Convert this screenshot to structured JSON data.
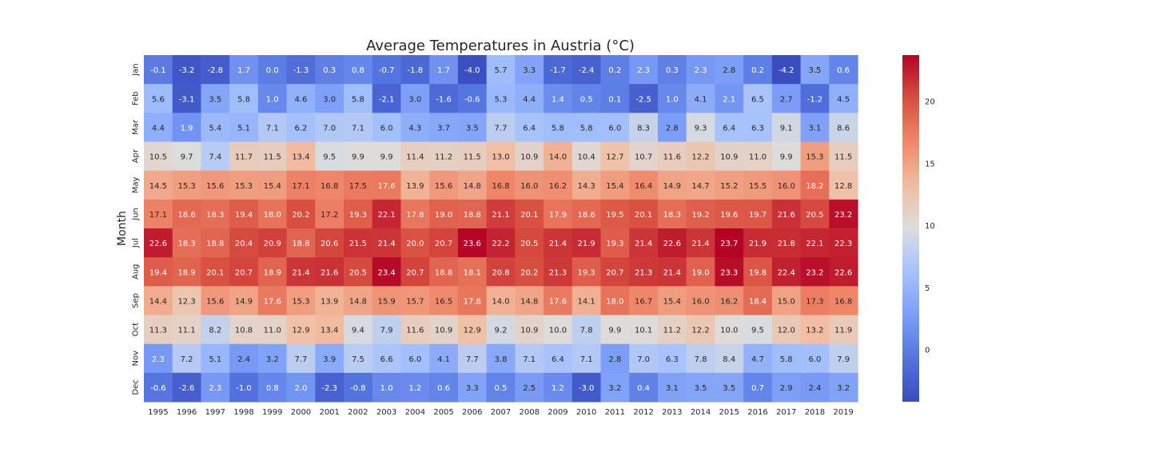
{
  "chart_data": {
    "type": "heatmap",
    "title": "Average Temperatures in Austria (°C)",
    "xlabel": "",
    "ylabel": "Month",
    "x": [
      "1995",
      "1996",
      "1997",
      "1998",
      "1999",
      "2000",
      "2001",
      "2002",
      "2003",
      "2004",
      "2005",
      "2006",
      "2007",
      "2008",
      "2009",
      "2010",
      "2011",
      "2012",
      "2013",
      "2014",
      "2015",
      "2016",
      "2017",
      "2018",
      "2019"
    ],
    "y": [
      "Jan",
      "Feb",
      "Mar",
      "Apr",
      "May",
      "Jun",
      "Jul",
      "Aug",
      "Sep",
      "Oct",
      "Nov",
      "Dec"
    ],
    "values": [
      [
        -0.1,
        -3.2,
        -2.8,
        1.7,
        0.0,
        -1.3,
        0.3,
        0.8,
        -0.7,
        -1.8,
        1.7,
        -4.0,
        5.7,
        3.3,
        -1.7,
        -2.4,
        0.2,
        2.3,
        0.3,
        2.3,
        2.8,
        0.2,
        -4.2,
        3.5,
        0.6
      ],
      [
        5.6,
        -3.1,
        3.5,
        5.8,
        1.0,
        4.6,
        3.0,
        5.8,
        -2.1,
        3.0,
        -1.6,
        -0.6,
        5.3,
        4.4,
        1.4,
        0.5,
        0.1,
        -2.5,
        1.0,
        4.1,
        2.1,
        6.5,
        2.7,
        -1.2,
        4.5
      ],
      [
        4.4,
        1.9,
        5.4,
        5.1,
        7.1,
        6.2,
        7.0,
        7.1,
        6.0,
        4.3,
        3.7,
        3.5,
        7.7,
        6.4,
        5.8,
        5.8,
        6.0,
        8.3,
        2.8,
        9.3,
        6.4,
        6.3,
        9.1,
        3.1,
        8.6
      ],
      [
        10.5,
        9.7,
        7.4,
        11.7,
        11.5,
        13.4,
        9.5,
        9.9,
        9.9,
        11.4,
        11.2,
        11.5,
        13.0,
        10.9,
        14.0,
        10.4,
        12.7,
        10.7,
        11.6,
        12.2,
        10.9,
        11.0,
        9.9,
        15.3,
        11.5
      ],
      [
        14.5,
        15.3,
        15.6,
        15.3,
        15.4,
        17.1,
        16.8,
        17.5,
        17.6,
        13.9,
        15.6,
        14.8,
        16.8,
        16.0,
        16.2,
        14.3,
        15.4,
        16.4,
        14.9,
        14.7,
        15.2,
        15.5,
        16.0,
        18.2,
        12.8
      ],
      [
        17.1,
        18.6,
        18.3,
        19.4,
        18.0,
        20.2,
        17.2,
        19.3,
        22.1,
        17.8,
        19.0,
        18.8,
        21.1,
        20.1,
        17.9,
        18.6,
        19.5,
        20.1,
        18.3,
        19.2,
        19.6,
        19.7,
        21.6,
        20.5,
        23.2
      ],
      [
        22.6,
        18.3,
        18.8,
        20.4,
        20.9,
        18.8,
        20.6,
        21.5,
        21.4,
        20.0,
        20.7,
        23.6,
        22.2,
        20.5,
        21.4,
        21.9,
        19.3,
        21.4,
        22.6,
        21.4,
        23.7,
        21.9,
        21.8,
        22.1,
        22.3
      ],
      [
        19.4,
        18.9,
        20.1,
        20.7,
        18.9,
        21.4,
        21.6,
        20.5,
        23.4,
        20.7,
        18.8,
        18.1,
        20.8,
        20.2,
        21.3,
        19.3,
        20.7,
        21.3,
        21.4,
        19.0,
        23.3,
        19.8,
        22.4,
        23.2,
        22.6
      ],
      [
        14.4,
        12.3,
        15.6,
        14.9,
        17.6,
        15.3,
        13.9,
        14.8,
        15.9,
        15.7,
        16.5,
        17.8,
        14.0,
        14.8,
        17.6,
        14.1,
        18.0,
        16.7,
        15.4,
        16.0,
        16.2,
        18.4,
        15.0,
        17.3,
        16.8
      ],
      [
        11.3,
        11.1,
        8.2,
        10.8,
        11.0,
        12.9,
        13.4,
        9.4,
        7.9,
        11.6,
        10.9,
        12.9,
        9.2,
        10.9,
        10.0,
        7.8,
        9.9,
        10.1,
        11.2,
        12.2,
        10.0,
        9.5,
        12.0,
        13.2,
        11.9
      ],
      [
        2.3,
        7.2,
        5.1,
        2.4,
        3.2,
        7.7,
        3.9,
        7.5,
        6.6,
        6.0,
        4.1,
        7.7,
        3.8,
        7.1,
        6.4,
        7.1,
        2.8,
        7.0,
        6.3,
        7.8,
        8.4,
        4.7,
        5.8,
        6.0,
        7.9
      ],
      [
        -0.6,
        -2.6,
        2.3,
        -1.0,
        0.8,
        2.0,
        -2.3,
        -0.8,
        1.0,
        1.2,
        0.6,
        3.3,
        0.5,
        2.5,
        1.2,
        -3.0,
        3.2,
        0.4,
        3.1,
        3.5,
        3.5,
        0.7,
        2.9,
        2.4,
        3.2
      ]
    ],
    "value_format": "0.1f",
    "colormap": "coolwarm",
    "vmin": -4.2,
    "vmax": 23.7,
    "colorbar_ticks": [
      0,
      5,
      10,
      15,
      20
    ],
    "colorbar_tick_labels": [
      "0",
      "5",
      "10",
      "15",
      "20"
    ],
    "grid": false,
    "colorbar_position": "right"
  }
}
